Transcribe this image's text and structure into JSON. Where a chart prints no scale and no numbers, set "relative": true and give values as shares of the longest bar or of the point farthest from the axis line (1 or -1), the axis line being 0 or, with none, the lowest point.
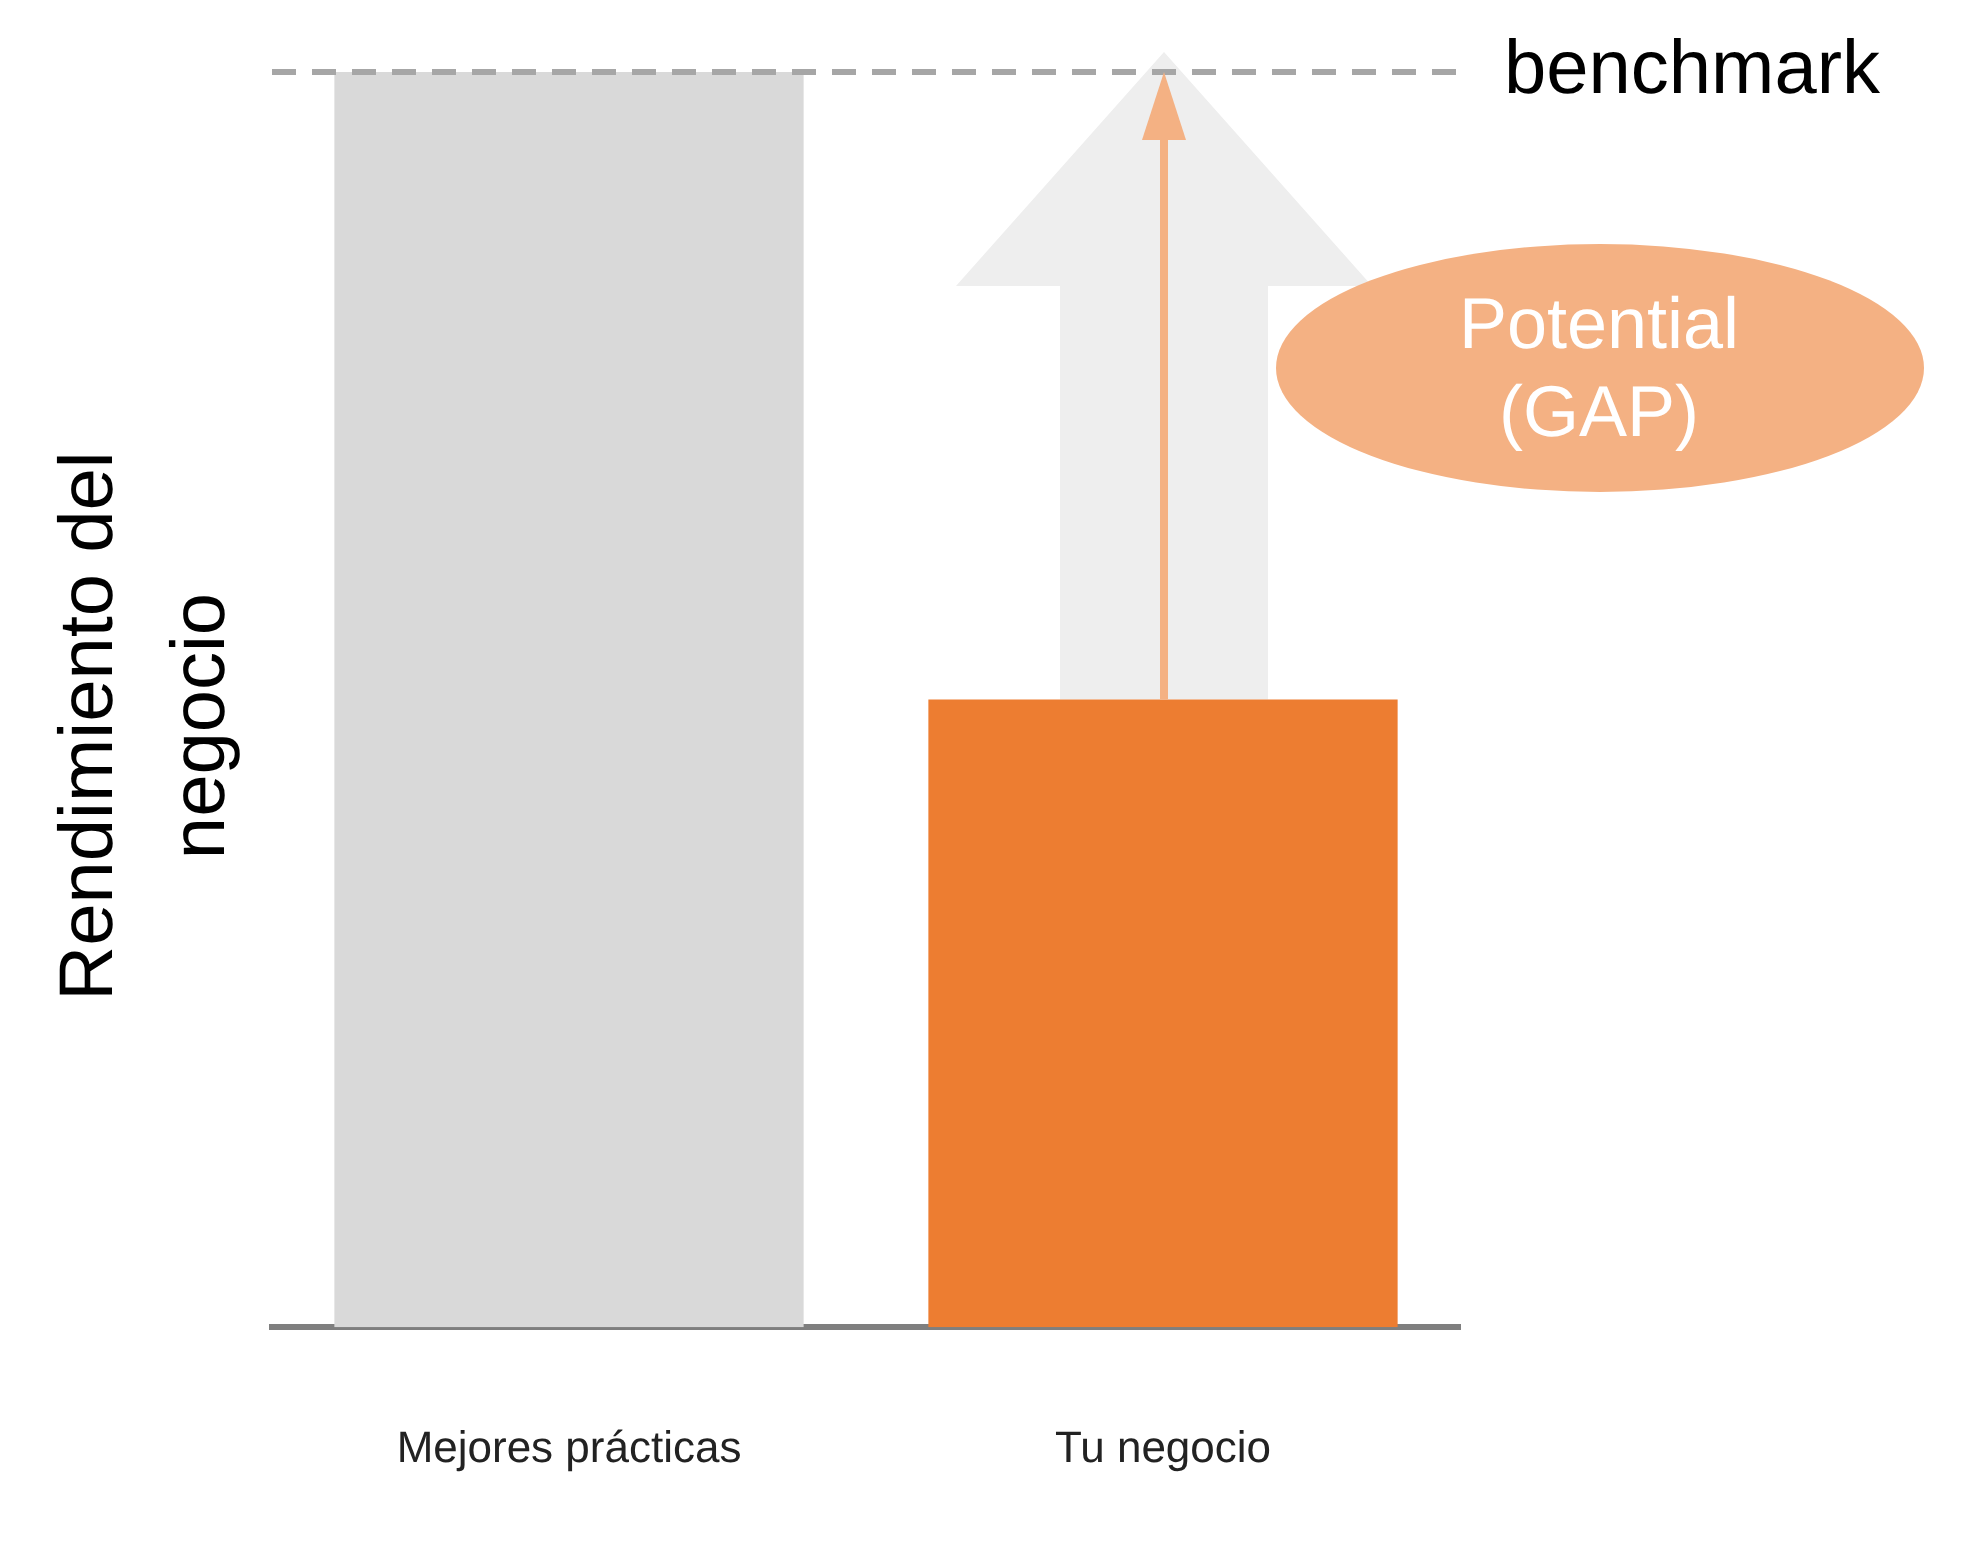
{
  "chart_data": {
    "type": "bar",
    "ylabel": "Rendimiento del negocio",
    "categories": [
      "Mejores prácticas",
      "Tu negocio"
    ],
    "values": [
      1,
      0.5
    ],
    "colors": [
      "#d9d9d9",
      "#ed7d31"
    ],
    "relative": true,
    "ref_lines": [
      {
        "axis": "y",
        "value": 1,
        "label": "benchmark",
        "color": "#a6a6a6",
        "line_style": "dashed"
      }
    ],
    "annotations": [
      "Potential (GAP)"
    ]
  }
}
